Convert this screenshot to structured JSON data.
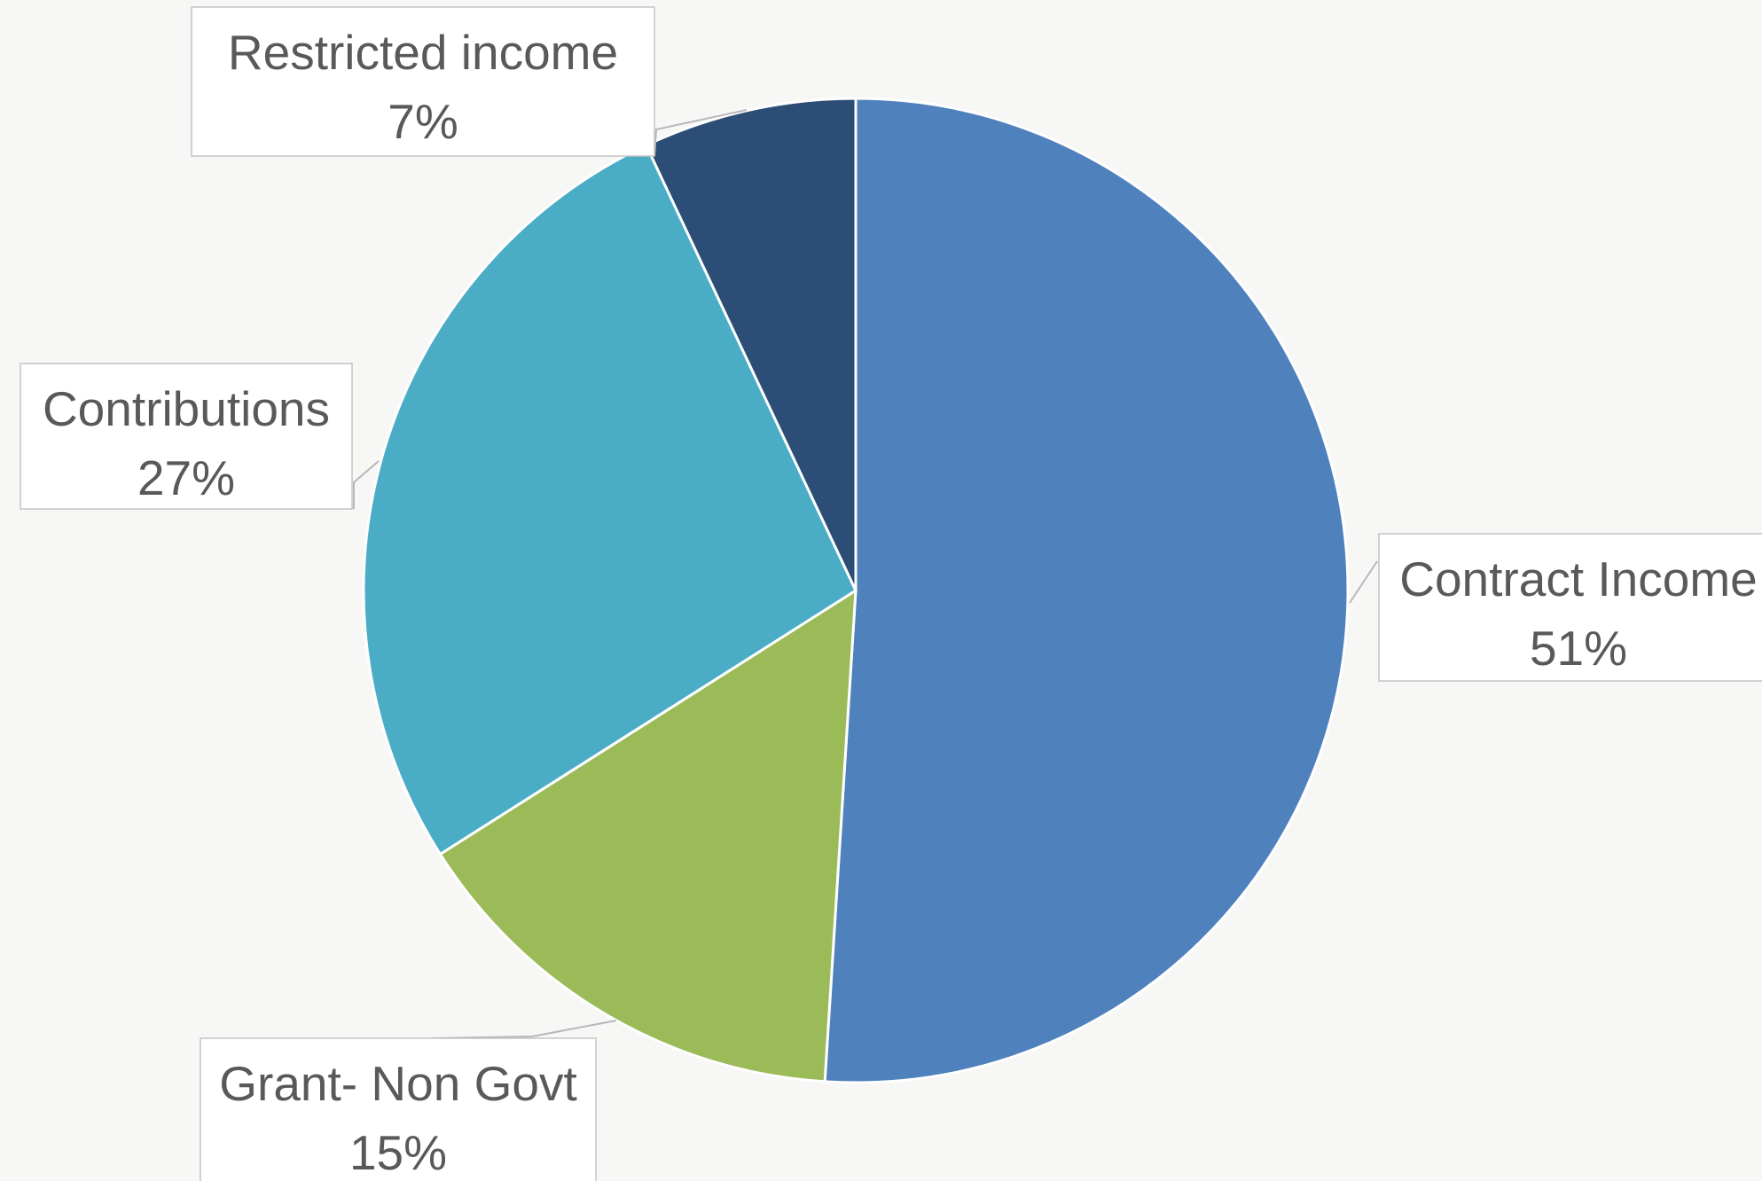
{
  "chart_data": {
    "type": "pie",
    "title": "",
    "slices": [
      {
        "label": "Contract Income",
        "percent_label": "51%",
        "value": 51,
        "color": "#4f81bd"
      },
      {
        "label": "Grant- Non Govt",
        "percent_label": "15%",
        "value": 15,
        "color": "#9bbb59"
      },
      {
        "label": "Contributions",
        "percent_label": "27%",
        "value": 27,
        "color": "#4bacc6"
      },
      {
        "label": "Restricted income",
        "percent_label": "7%",
        "value": 7,
        "color": "#2c4d75"
      }
    ],
    "legend": "none",
    "data_labels": "callout"
  }
}
